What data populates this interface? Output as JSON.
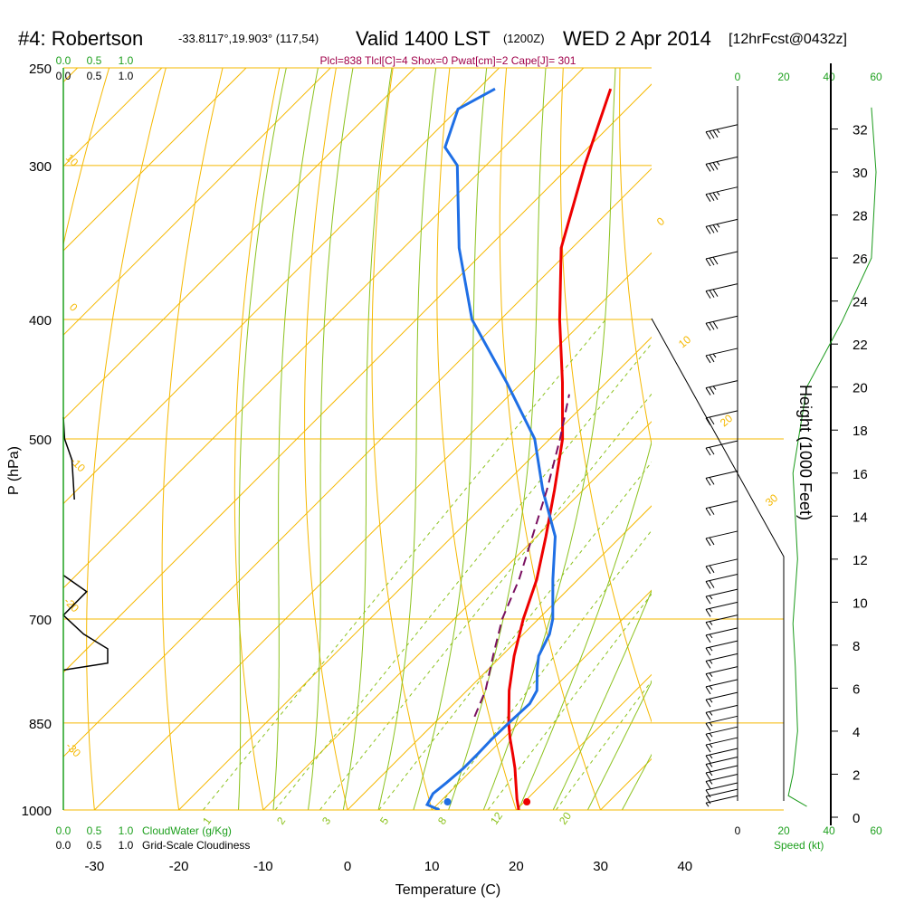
{
  "header": {
    "station": "#4: Robertson",
    "coords": "-33.8117°,19.903° (117,54)",
    "valid": "Valid 1400 LST",
    "utc": "(1200Z)",
    "date": "WED 2 Apr 2014",
    "forecast": "[12hrFcst@0432z]",
    "indices": "Plcl=838 Tlcl[C]=4 Shox=0 Pwat[cm]=2 Cape[J]= 301"
  },
  "colors": {
    "isobar": "#f5b800",
    "dry_adiabat": "#f5b800",
    "moist_adiabat": "#8cc21e",
    "mixing_ratio": "#8cc21e",
    "temperature": "#ee0000",
    "dewpoint": "#1f6fe5",
    "parcel": "#7a1060",
    "cloud": "#000000",
    "height_profile": "#1a9a1a",
    "scale_green": "#1ea01e",
    "indices_text": "#a0004a"
  },
  "chart_data": {
    "type": "line",
    "diagram": "skew-T log-P",
    "xlabel": "Temperature (C)",
    "ylabel": "P (hPa)",
    "y2label": "Height (1000 Feet)",
    "x_ticks": [
      "-30",
      "-20",
      "-10",
      "0",
      "10",
      "20",
      "30",
      "40"
    ],
    "pressure_ticks": [
      "250",
      "300",
      "400",
      "500",
      "700",
      "850",
      "1000"
    ],
    "pressure_values": [
      250,
      300,
      400,
      500,
      700,
      850,
      1000
    ],
    "height_ticks": [
      "0",
      "2",
      "4",
      "6",
      "8",
      "10",
      "12",
      "14",
      "16",
      "18",
      "20",
      "22",
      "24",
      "26",
      "28",
      "30",
      "32"
    ],
    "height_values": [
      0,
      2,
      4,
      6,
      8,
      10,
      12,
      14,
      16,
      18,
      20,
      22,
      24,
      26,
      28,
      30,
      32
    ],
    "isotherm_labels": [
      "0",
      "10",
      "20",
      "30"
    ],
    "dry_adiabat_labels": [
      "10",
      "0",
      "-10",
      "-20",
      "-30"
    ],
    "mixing_ratio_labels": [
      "1",
      "2",
      "3",
      "5",
      "8",
      "12",
      "20"
    ],
    "series": [
      {
        "name": "Temperature",
        "x_hpa": [
          1000,
          980,
          950,
          925,
          900,
          875,
          850,
          800,
          750,
          700,
          650,
          600,
          550,
          500,
          450,
          400,
          350,
          300,
          260
        ],
        "values": [
          20.3,
          18.8,
          16.7,
          14.9,
          12.9,
          10.8,
          8.8,
          5.0,
          1.5,
          -1.8,
          -4.9,
          -8.9,
          -13.4,
          -18.5,
          -25.2,
          -33.0,
          -41.3,
          -48.3,
          -54.3
        ]
      },
      {
        "name": "Dewpoint",
        "x_hpa": [
          1000,
          990,
          970,
          950,
          925,
          900,
          875,
          850,
          820,
          800,
          770,
          750,
          720,
          700,
          650,
          600,
          550,
          500,
          450,
          400,
          350,
          300,
          290,
          270,
          260
        ],
        "values": [
          10.9,
          8.8,
          8.2,
          8.5,
          8.8,
          8.8,
          8.7,
          8.8,
          9.0,
          8.3,
          5.9,
          4.4,
          3.1,
          1.7,
          -3.0,
          -7.8,
          -14.8,
          -21.8,
          -31.8,
          -43.4,
          -53.4,
          -63.4,
          -67.0,
          -70.0,
          -68.0
        ]
      },
      {
        "name": "Parcel",
        "x_hpa": [
          840,
          800,
          750,
          700,
          650,
          600,
          550,
          500,
          460
        ],
        "values": [
          4.0,
          2.2,
          -1.0,
          -4.3,
          -7.0,
          -10.5,
          -14.3,
          -18.8,
          -23.0
        ]
      }
    ],
    "surface_points": {
      "temperature": 20.3,
      "dewpoint": 10.9
    },
    "wind_barbs": {
      "height_kft": [
        1,
        1.3,
        1.6,
        2,
        2.4,
        2.8,
        3.2,
        3.7,
        4.2,
        4.7,
        5.2,
        5.8,
        6.4,
        7,
        7.6,
        8.2,
        8.8,
        9.4,
        10,
        10.6,
        11.3,
        12,
        13.3,
        14.7,
        16.1,
        17.5,
        18.9,
        20.3,
        21.8,
        23.3,
        24.8,
        26.3,
        27.8,
        29.3,
        30.7,
        32.2
      ],
      "speed_kt": [
        5,
        10,
        10,
        15,
        15,
        15,
        15,
        15,
        15,
        15,
        15,
        15,
        15,
        15,
        15,
        15,
        15,
        15,
        15,
        15,
        20,
        20,
        20,
        20,
        20,
        20,
        20,
        25,
        25,
        30,
        30,
        30,
        35,
        35,
        35,
        35
      ]
    },
    "speed_scale_ticks": [
      "0",
      "20",
      "40",
      "60"
    ],
    "speed_label": "Speed (kt)",
    "cloud_scale_top": [
      "0.0",
      "0.5",
      "1.0"
    ],
    "cloud_scale_top_black": [
      "0.0",
      "0.5",
      "1.0"
    ],
    "cloud_scale_bottom": [
      "0.0",
      "0.5",
      "1.0"
    ],
    "cloud_scale_bottom_black": [
      "0.0",
      "0.5",
      "1.0"
    ],
    "cloudwater_label": "CloudWater (g/Kg)",
    "cloudiness_label": "Grid-Scale Cloudiness",
    "cloudiness_profile": {
      "x": [
        0,
        0.02,
        0.14,
        0.18,
        0.14,
        0.02,
        0.0,
        0.0,
        0.38,
        0.0,
        0.33,
        0.72,
        0.72,
        0.0
      ],
      "hpa": [
        480,
        500,
        520,
        560,
        520,
        500,
        480,
        645,
        665,
        695,
        720,
        740,
        760,
        770
      ]
    }
  }
}
